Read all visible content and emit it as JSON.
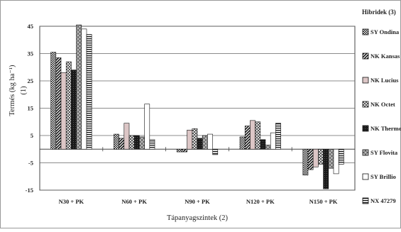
{
  "chart_data": {
    "type": "bar",
    "title": "",
    "xlabel": "Tápanyagszintek (2)",
    "ylabel": "Termés (kg ha⁻¹)",
    "ylabel_note": "(1)",
    "ylim": [
      -15,
      45
    ],
    "yticks": [
      -15,
      -5,
      5,
      15,
      25,
      35,
      45
    ],
    "grid": true,
    "legend_position": "right",
    "legend_title": "Hibridek (3)",
    "categories": [
      "N30 + PK",
      "N60 + PK",
      "N90 + PK",
      "N120 + PK",
      "N150 + PK"
    ],
    "series": [
      {
        "name": "SY Ondina",
        "values": [
          35.5,
          5.5,
          -1,
          4.5,
          -9.5
        ]
      },
      {
        "name": "NK Kansas",
        "values": [
          33.5,
          4,
          -1,
          8.5,
          -7.5
        ]
      },
      {
        "name": "NK Lucius",
        "values": [
          28,
          9.5,
          7,
          10.5,
          -6.5
        ]
      },
      {
        "name": "NK Octet",
        "values": [
          32,
          5,
          7.5,
          10,
          -5.5
        ]
      },
      {
        "name": "NK Thermo",
        "values": [
          29,
          5,
          4,
          3.5,
          -14.5
        ]
      },
      {
        "name": "SY Flovita",
        "values": [
          45.5,
          4.5,
          5,
          1.5,
          -7
        ]
      },
      {
        "name": "SY Brillio",
        "values": [
          44,
          16.5,
          5.5,
          6,
          -9
        ]
      },
      {
        "name": "NX 47279",
        "values": [
          42,
          3.5,
          -2,
          9.5,
          -5.5
        ]
      }
    ]
  }
}
